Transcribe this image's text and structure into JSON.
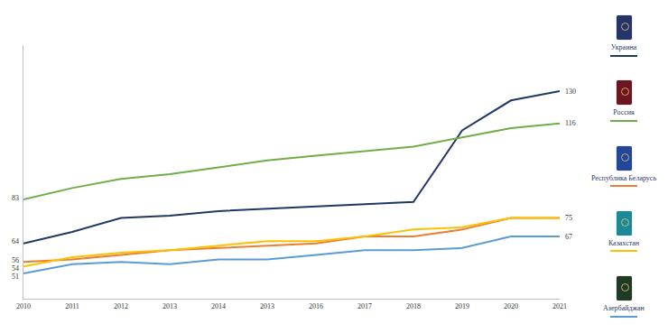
{
  "chart_data": {
    "type": "line",
    "categories": [
      "2010",
      "2011",
      "2012",
      "2013",
      "2014",
      "2013",
      "2016",
      "2017",
      "2018",
      "2019",
      "2020",
      "2021"
    ],
    "series": [
      {
        "name": "Украина",
        "color": "#1f3864",
        "values": [
          64,
          69,
          75,
          76,
          78,
          79,
          80,
          81,
          82,
          113,
          126,
          130
        ]
      },
      {
        "name": "Россия",
        "color": "#70ad47",
        "values": [
          83,
          88,
          92,
          94,
          97,
          100,
          102,
          104,
          106,
          110,
          114,
          116
        ]
      },
      {
        "name": "Республика Беларусь",
        "color": "#ed7d31",
        "values": [
          56,
          57,
          59,
          61,
          62,
          63,
          64,
          67,
          67,
          70,
          75,
          75
        ]
      },
      {
        "name": "Казахстан",
        "color": "#ffc000",
        "values": [
          54,
          58,
          60,
          61,
          63,
          65,
          65,
          67,
          70,
          71,
          75,
          75
        ]
      },
      {
        "name": "Азербайджан",
        "color": "#5b9bd5",
        "values": [
          51,
          55,
          56,
          55,
          57,
          57,
          59,
          61,
          61,
          62,
          67,
          67
        ]
      }
    ],
    "ylim": [
      40,
      150
    ],
    "tick_labels": "x",
    "grid": false,
    "legend": "right",
    "annotations": [
      {
        "text": "83",
        "category": "2010",
        "value": 83
      },
      {
        "text": "64",
        "category": "2010",
        "value": 64
      },
      {
        "text": "56",
        "category": "2010",
        "value": 56
      },
      {
        "text": "54",
        "category": "2010",
        "value": 54
      },
      {
        "text": "51",
        "category": "2010",
        "value": 51
      },
      {
        "text": "130",
        "category": "2021",
        "value": 130
      },
      {
        "text": "116",
        "category": "2021",
        "value": 116
      },
      {
        "text": "75",
        "category": "2021",
        "value": 75
      },
      {
        "text": "67",
        "category": "2021",
        "value": 67
      }
    ]
  }
}
